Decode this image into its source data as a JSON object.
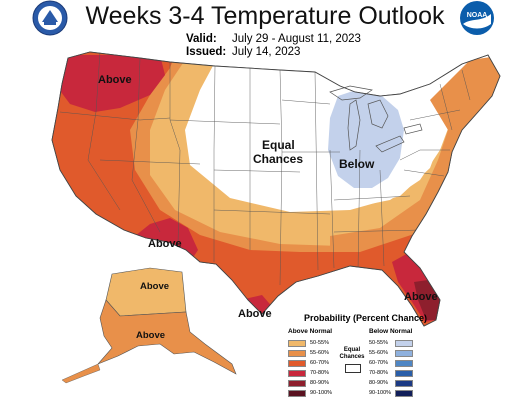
{
  "header": {
    "title": "Weeks 3-4 Temperature Outlook",
    "valid_label": "Valid:",
    "valid_value": "July 29 - August 11, 2023",
    "issued_label": "Issued:",
    "issued_value": "July 14, 2023"
  },
  "logos": {
    "left": "noaa-doc-seal-icon",
    "right": "noaa-logo-icon",
    "right_text": "NOAA"
  },
  "map_labels": {
    "above_nw": "Above",
    "above_sw": "Above",
    "above_fl": "Above",
    "above_tx": "Above",
    "above_ak_n": "Above",
    "above_ak_s": "Above",
    "equal_chances": "Equal\nChances",
    "equal_line1": "Equal",
    "equal_line2": "Chances",
    "below": "Below"
  },
  "legend": {
    "title": "Probability (Percent Chance)",
    "above_header": "Above Normal",
    "below_header": "Below Normal",
    "equal_title_1": "Equal",
    "equal_title_2": "Chances",
    "above": [
      {
        "label": "50-55%",
        "color": "#f0b86a"
      },
      {
        "label": "55-60%",
        "color": "#e8904a"
      },
      {
        "label": "60-70%",
        "color": "#e05a2c"
      },
      {
        "label": "70-80%",
        "color": "#c8283c"
      },
      {
        "label": "80-90%",
        "color": "#8e1f2d"
      },
      {
        "label": "90-100%",
        "color": "#5a1220"
      }
    ],
    "below": [
      {
        "label": "50-55%",
        "color": "#c3d1eb"
      },
      {
        "label": "55-60%",
        "color": "#8fb1de"
      },
      {
        "label": "60-70%",
        "color": "#4f86c4"
      },
      {
        "label": "70-80%",
        "color": "#2a5ea8"
      },
      {
        "label": "80-90%",
        "color": "#1c3a84"
      },
      {
        "label": "90-100%",
        "color": "#111f5a"
      }
    ]
  },
  "colors": {
    "a50": "#f0b86a",
    "a55": "#e8904a",
    "a60": "#e05a2c",
    "a70": "#c8283c",
    "a80": "#8e1f2d",
    "b50": "#c3d1eb",
    "land": "#ffffff",
    "border": "#666666"
  }
}
